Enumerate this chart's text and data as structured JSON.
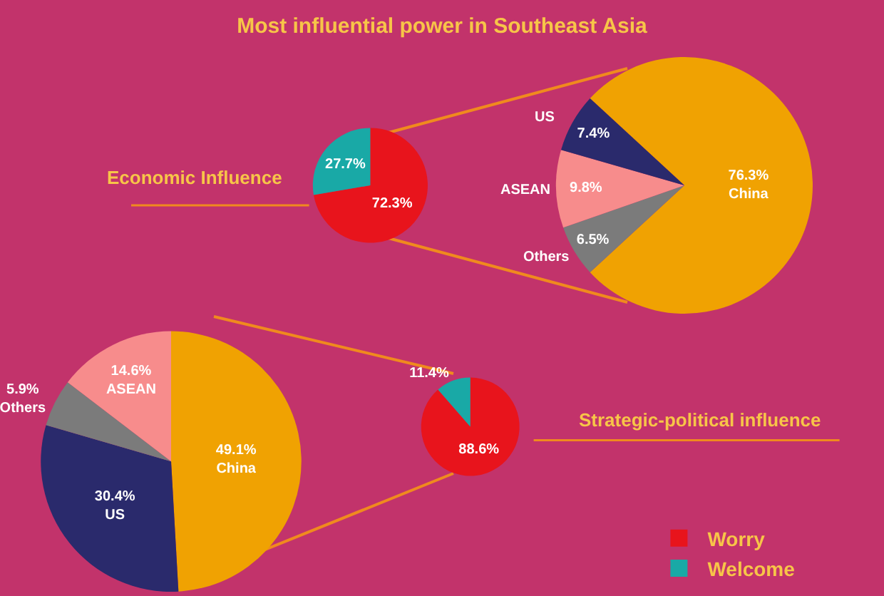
{
  "chart_data": [
    {
      "type": "pie",
      "title": "Most influential power in Southeast Asia",
      "categories": [
        null,
        null
      ],
      "values": [
        72.3,
        27.7
      ],
      "colors": [
        "#e8141c",
        "#19a9a6"
      ],
      "value_labels": [
        "72.3%",
        "27.7%"
      ],
      "annotations": [
        "Economic Influence"
      ]
    },
    {
      "type": "pie",
      "categories": [
        "China",
        "Others",
        "ASEAN",
        "US"
      ],
      "values": [
        76.3,
        6.5,
        9.8,
        7.4
      ],
      "colors": [
        "#f0a202",
        "#7b7b7b",
        "#f78c8c",
        "#2a2a6c"
      ],
      "value_labels": [
        "76.3%",
        "6.5%",
        "9.8%",
        "7.4%"
      ]
    },
    {
      "type": "pie",
      "categories": [
        "China",
        "US",
        "Others",
        "ASEAN"
      ],
      "values": [
        49.1,
        30.4,
        5.9,
        14.6
      ],
      "colors": [
        "#f0a202",
        "#2a2a6c",
        "#7b7b7b",
        "#f78c8c"
      ],
      "value_labels": [
        "49.1%",
        "30.4%",
        "5.9%",
        "14.6%"
      ]
    },
    {
      "type": "pie",
      "categories": [
        "Worry",
        "Welcome"
      ],
      "values": [
        88.6,
        11.4
      ],
      "colors": [
        "#e8141c",
        "#19a9a6"
      ],
      "value_labels": [
        "88.6%",
        "11.4%"
      ],
      "annotations": [
        "Strategic-political influence"
      ],
      "legend": "bottom right"
    }
  ]
}
